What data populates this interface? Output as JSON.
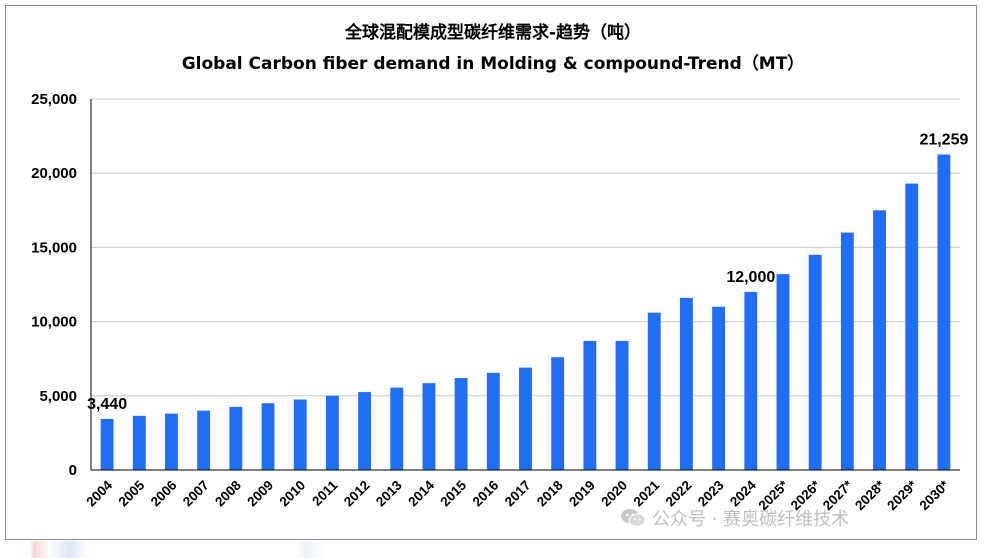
{
  "chart_data": {
    "type": "bar",
    "title": "全球混配模成型碳纤维需求-趋势（吨）",
    "subtitle": "Global Carbon fiber demand in Molding & compound-Trend（MT）",
    "xlabel": "",
    "ylabel": "",
    "ylim": [
      0,
      25000
    ],
    "yticks": [
      0,
      5000,
      10000,
      15000,
      20000,
      25000
    ],
    "ytick_labels": [
      "0",
      "5,000",
      "10,000",
      "15,000",
      "20,000",
      "25,000"
    ],
    "grid": true,
    "legend": "none",
    "categories": [
      "2004",
      "2005",
      "2006",
      "2007",
      "2008",
      "2009",
      "2010",
      "2011",
      "2012",
      "2013",
      "2014",
      "2015",
      "2016",
      "2017",
      "2018",
      "2019",
      "2020",
      "2021",
      "2022",
      "2023",
      "2024",
      "2025*",
      "2026*",
      "2027*",
      "2028*",
      "2029*",
      "2030*"
    ],
    "values": [
      3440,
      3650,
      3800,
      4000,
      4250,
      4500,
      4750,
      5000,
      5250,
      5550,
      5850,
      6200,
      6550,
      6900,
      7600,
      8700,
      8700,
      10600,
      11600,
      11000,
      12000,
      13200,
      14500,
      16000,
      17500,
      19300,
      21259
    ],
    "data_labels": [
      {
        "index": 0,
        "text": "3,440"
      },
      {
        "index": 20,
        "text": "12,000"
      },
      {
        "index": 26,
        "text": "21,259"
      }
    ],
    "bar_color": "#1f6ef5"
  },
  "watermark": {
    "text": "公众号 · 赛奥碳纤维技术",
    "icon": "wechat-icon"
  }
}
